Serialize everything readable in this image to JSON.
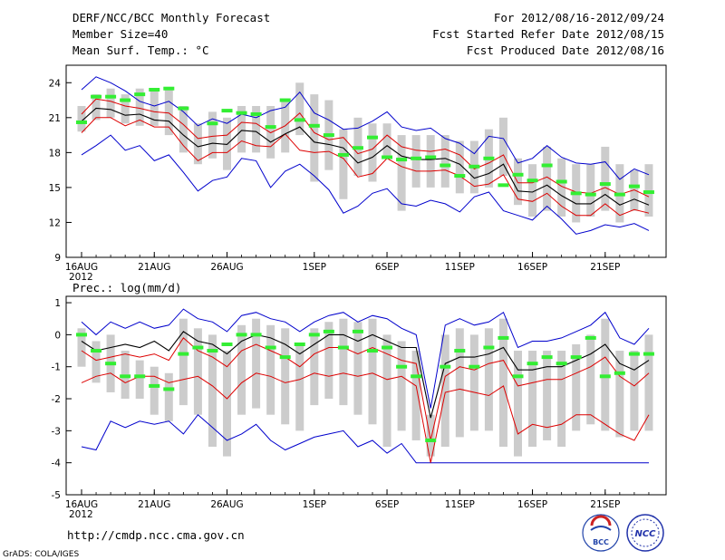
{
  "header": {
    "title": "DERF/NCC/BCC Monthly Forecast",
    "member_size": "Member Size=40",
    "variable": "Mean Surf. Temp.: °C",
    "period": "For 2012/08/16-2012/09/24",
    "fcst_start": "Fcst Started Refer Date 2012/08/15",
    "fcst_produced": "Fcst Produced Date 2012/08/16"
  },
  "footer": {
    "url": "http://cmdp.ncc.cma.gov.cn",
    "grads": "GrADS: COLA/IGES",
    "logo_bcc": "BCC",
    "logo_ncc": "NCC"
  },
  "colors": {
    "box": "#cccccc",
    "mean": "#000000",
    "spread": "#dd0000",
    "extreme": "#0000cc",
    "obs": "#33ee33",
    "background": "#ffffff"
  },
  "chart_data": [
    {
      "type": "line",
      "title": "Mean Surf. Temp.: °C",
      "xlabel": "",
      "ylabel": "°C",
      "x_tick_labels": [
        "16AUG",
        "21AUG",
        "26AUG",
        "1SEP",
        "6SEP",
        "11SEP",
        "16SEP",
        "21SEP"
      ],
      "x_year_label": "2012",
      "x_tick_days": [
        0,
        5,
        10,
        16,
        21,
        26,
        31,
        36
      ],
      "ylim": [
        9,
        25.5
      ],
      "y_ticks": [
        9,
        12,
        15,
        18,
        21,
        24
      ],
      "n_days": 40,
      "series": [
        {
          "name": "max",
          "values": [
            17.8,
            18.6,
            19.5,
            18.2,
            18.6,
            17.3,
            17.8,
            16.3,
            14.7,
            15.6,
            15.9,
            17.5,
            17.3,
            15.0,
            16.4,
            17.0,
            16.0,
            14.8,
            12.8,
            13.4,
            14.5,
            14.9,
            13.6,
            13.4,
            13.9,
            13.6,
            12.9,
            14.2,
            14.6,
            13.0,
            12.6,
            12.2,
            13.4,
            12.3,
            11.0,
            11.3,
            11.8,
            11.6,
            11.9,
            11.3
          ]
        },
        {
          "name": "spread_low",
          "values": [
            19.7,
            21.0,
            21.0,
            20.3,
            20.8,
            20.2,
            20.2,
            18.6,
            17.3,
            18.0,
            18.0,
            19.0,
            18.6,
            18.5,
            19.6,
            18.2,
            18.0,
            18.1,
            17.5,
            15.9,
            16.2,
            17.5,
            16.8,
            16.4,
            16.4,
            16.5,
            16.0,
            15.1,
            15.3,
            16.1,
            14.0,
            13.8,
            14.5,
            13.4,
            12.6,
            12.6,
            13.6,
            12.6,
            13.1,
            12.8
          ]
        },
        {
          "name": "mean",
          "values": [
            20.7,
            21.8,
            21.7,
            21.2,
            21.3,
            20.8,
            20.7,
            19.5,
            18.5,
            18.8,
            18.7,
            19.9,
            19.8,
            18.9,
            19.6,
            20.2,
            18.9,
            18.7,
            18.4,
            17.1,
            17.6,
            18.6,
            17.7,
            17.4,
            17.4,
            17.5,
            17.0,
            15.8,
            16.2,
            17.0,
            14.7,
            14.6,
            15.2,
            14.3,
            13.6,
            13.6,
            14.4,
            13.5,
            14.0,
            13.5
          ]
        },
        {
          "name": "spread_high",
          "values": [
            21.3,
            22.6,
            22.4,
            22.0,
            21.8,
            21.5,
            21.4,
            20.4,
            19.2,
            19.4,
            19.5,
            20.6,
            20.5,
            19.7,
            20.3,
            21.4,
            19.7,
            19.1,
            19.3,
            17.9,
            18.3,
            19.5,
            18.5,
            18.2,
            18.1,
            18.3,
            17.8,
            16.6,
            17.1,
            17.8,
            15.4,
            15.4,
            15.9,
            15.1,
            14.6,
            14.5,
            15.0,
            14.4,
            14.8,
            14.2
          ]
        },
        {
          "name": "min",
          "values": [
            23.4,
            24.5,
            24.0,
            23.3,
            22.4,
            22.0,
            22.4,
            21.5,
            20.3,
            20.9,
            20.5,
            21.3,
            21.0,
            21.6,
            21.9,
            23.2,
            21.4,
            20.8,
            20.0,
            20.1,
            20.7,
            21.5,
            20.2,
            19.9,
            20.1,
            19.2,
            18.8,
            17.9,
            19.4,
            19.2,
            17.1,
            17.5,
            18.6,
            17.6,
            17.1,
            17.0,
            17.2,
            15.7,
            16.6,
            16.1
          ]
        },
        {
          "name": "observed",
          "values": [
            20.6,
            22.8,
            22.8,
            22.5,
            23.0,
            23.4,
            23.5,
            21.8,
            null,
            20.5,
            21.6,
            21.4,
            21.3,
            20.2,
            22.5,
            20.8,
            20.3,
            19.5,
            17.8,
            18.4,
            19.3,
            17.6,
            17.4,
            17.5,
            17.6,
            16.9,
            16.0,
            16.8,
            17.5,
            15.2,
            16.1,
            15.6,
            16.9,
            15.5,
            14.5,
            14.4,
            15.3,
            14.4,
            15.1,
            14.6
          ]
        },
        {
          "name": "box_low",
          "values": [
            19.8,
            20.8,
            21.0,
            20.5,
            20.3,
            20.3,
            19.5,
            18.0,
            17.0,
            17.5,
            16.5,
            18.0,
            18.0,
            17.5,
            18.0,
            19.5,
            15.5,
            16.5,
            14.0,
            16.0,
            15.5,
            17.5,
            13.0,
            15.0,
            15.0,
            15.0,
            14.5,
            14.5,
            15.0,
            16.0,
            13.5,
            12.5,
            13.0,
            12.5,
            12.0,
            12.5,
            13.0,
            12.0,
            13.0,
            12.5
          ]
        },
        {
          "name": "box_high",
          "values": [
            22.0,
            23.0,
            23.5,
            23.0,
            23.5,
            23.5,
            23.5,
            22.0,
            20.5,
            21.5,
            21.0,
            22.0,
            22.0,
            22.0,
            22.5,
            24.0,
            23.0,
            22.5,
            20.0,
            21.0,
            20.5,
            20.5,
            19.5,
            19.5,
            19.5,
            19.5,
            19.0,
            19.0,
            20.0,
            21.0,
            17.5,
            17.0,
            18.5,
            17.5,
            17.0,
            17.0,
            18.5,
            17.0,
            16.5,
            17.0
          ]
        }
      ]
    },
    {
      "type": "line",
      "title": "Prec.: log(mm/d)",
      "xlabel": "",
      "ylabel": "log(mm/d)",
      "x_tick_labels": [
        "16AUG",
        "21AUG",
        "26AUG",
        "1SEP",
        "6SEP",
        "11SEP",
        "16SEP",
        "21SEP"
      ],
      "x_year_label": "2012",
      "x_tick_days": [
        0,
        5,
        10,
        16,
        21,
        26,
        31,
        36
      ],
      "ylim": [
        -5,
        1.2
      ],
      "y_ticks": [
        -5,
        -4,
        -3,
        -2,
        -1,
        0,
        1
      ],
      "n_days": 40,
      "series": [
        {
          "name": "min",
          "values": [
            -3.5,
            -3.6,
            -2.7,
            -2.9,
            -2.7,
            -2.8,
            -2.7,
            -3.1,
            -2.5,
            -2.9,
            -3.3,
            -3.1,
            -2.8,
            -3.3,
            -3.6,
            -3.4,
            -3.2,
            -3.1,
            -3.0,
            -3.5,
            -3.3,
            -3.7,
            -3.4,
            -4.0,
            -4.0,
            -4.0,
            -4.0,
            -4.0,
            -4.0,
            -4.0,
            -4.0,
            -4.0,
            -4.0,
            -4.0,
            -4.0,
            -4.0,
            -4.0,
            -4.0,
            -4.0,
            -4.0
          ]
        },
        {
          "name": "spread_low",
          "values": [
            -1.5,
            -1.3,
            -1.2,
            -1.5,
            -1.3,
            -1.3,
            -1.5,
            -1.4,
            -1.3,
            -1.6,
            -2.0,
            -1.5,
            -1.2,
            -1.3,
            -1.5,
            -1.4,
            -1.2,
            -1.3,
            -1.2,
            -1.3,
            -1.2,
            -1.4,
            -1.3,
            -1.6,
            -4.0,
            -1.8,
            -1.7,
            -1.8,
            -1.9,
            -1.6,
            -3.1,
            -2.8,
            -2.9,
            -2.8,
            -2.5,
            -2.5,
            -2.8,
            -3.1,
            -3.3,
            -2.5
          ]
        },
        {
          "name": "mean",
          "values": [
            -0.2,
            -0.5,
            -0.4,
            -0.3,
            -0.4,
            -0.2,
            -0.5,
            0.1,
            -0.2,
            -0.3,
            -0.6,
            -0.2,
            0.0,
            -0.1,
            -0.3,
            -0.6,
            -0.3,
            0.0,
            0.0,
            -0.2,
            0.0,
            -0.2,
            -0.4,
            -0.4,
            -2.6,
            -0.9,
            -0.7,
            -0.7,
            -0.6,
            -0.4,
            -1.1,
            -1.1,
            -1.0,
            -1.0,
            -0.8,
            -0.6,
            -0.3,
            -0.9,
            -1.1,
            -0.8
          ]
        },
        {
          "name": "spread_high",
          "values": [
            -0.5,
            -0.8,
            -0.7,
            -0.6,
            -0.7,
            -0.6,
            -0.8,
            -0.1,
            -0.5,
            -0.7,
            -1.0,
            -0.5,
            -0.3,
            -0.5,
            -0.7,
            -1.0,
            -0.6,
            -0.4,
            -0.4,
            -0.6,
            -0.4,
            -0.6,
            -0.8,
            -0.9,
            -3.3,
            -1.3,
            -1.0,
            -1.1,
            -0.9,
            -0.8,
            -1.6,
            -1.5,
            -1.4,
            -1.4,
            -1.2,
            -1.0,
            -0.7,
            -1.3,
            -1.6,
            -1.2
          ]
        },
        {
          "name": "max",
          "values": [
            0.4,
            0.0,
            0.4,
            0.2,
            0.4,
            0.2,
            0.3,
            0.8,
            0.5,
            0.4,
            0.1,
            0.6,
            0.7,
            0.5,
            0.4,
            0.1,
            0.4,
            0.6,
            0.7,
            0.4,
            0.6,
            0.5,
            0.2,
            0.0,
            -2.3,
            0.3,
            0.5,
            0.3,
            0.4,
            0.7,
            -0.4,
            -0.2,
            -0.2,
            -0.1,
            0.1,
            0.3,
            0.7,
            -0.1,
            -0.3,
            0.2
          ]
        },
        {
          "name": "observed",
          "values": [
            0.0,
            -0.5,
            -0.9,
            -1.3,
            -1.3,
            -1.6,
            -1.7,
            -0.6,
            -0.4,
            -0.5,
            -0.3,
            0.0,
            0.0,
            -0.4,
            -0.7,
            -0.3,
            0.0,
            0.1,
            -0.4,
            0.1,
            -0.5,
            -0.4,
            -1.0,
            -1.3,
            -3.3,
            -1.0,
            -0.5,
            -1.0,
            -0.4,
            -0.1,
            -1.3,
            -0.9,
            -0.7,
            -0.9,
            -0.7,
            -0.1,
            -1.3,
            -1.2,
            -0.6,
            -0.6
          ]
        },
        {
          "name": "box_low",
          "values": [
            -1.0,
            -1.5,
            -1.8,
            -2.0,
            -2.0,
            -2.5,
            -2.7,
            -2.2,
            -2.5,
            -3.5,
            -3.8,
            -2.5,
            -2.3,
            -2.5,
            -2.8,
            -3.0,
            -2.2,
            -2.0,
            -2.2,
            -2.5,
            -2.8,
            -3.5,
            -3.0,
            -3.3,
            -3.8,
            -3.5,
            -3.2,
            -3.0,
            -3.0,
            -3.5,
            -3.8,
            -3.5,
            -3.3,
            -3.5,
            -3.0,
            -2.8,
            -3.0,
            -3.2,
            -3.0,
            -3.0
          ]
        },
        {
          "name": "box_high",
          "values": [
            0.2,
            -0.2,
            0.0,
            -0.5,
            -0.8,
            -1.0,
            -1.2,
            0.5,
            0.2,
            0.0,
            -0.5,
            0.3,
            0.5,
            0.3,
            0.2,
            -0.3,
            0.2,
            0.4,
            0.5,
            0.4,
            0.5,
            0.0,
            -0.2,
            -0.5,
            -2.5,
            0.0,
            0.2,
            0.0,
            0.2,
            0.5,
            -0.5,
            -0.5,
            -0.5,
            -0.5,
            -0.3,
            0.0,
            0.5,
            -0.5,
            -0.5,
            0.0
          ]
        }
      ]
    }
  ]
}
